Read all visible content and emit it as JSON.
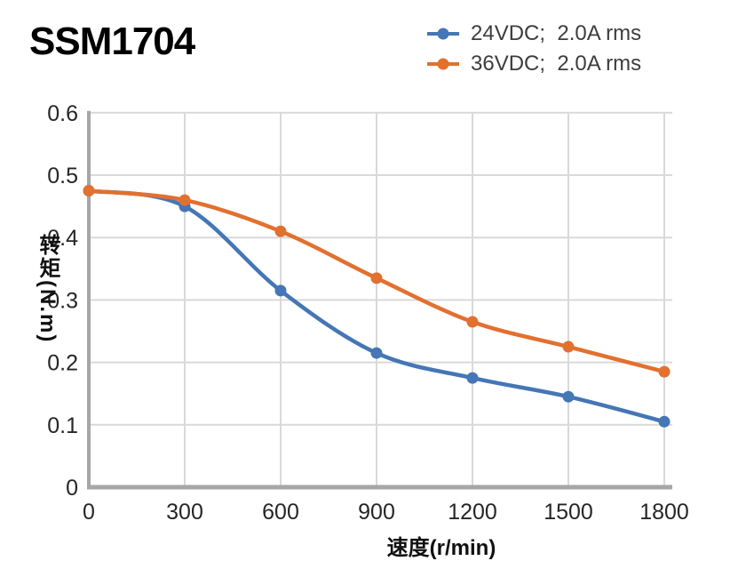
{
  "title": "SSM1704",
  "colors": {
    "series_24vdc": "#4576B5",
    "series_36vdc": "#E2702F",
    "grid": "#D9D9D9",
    "axis": "#A6A6A6",
    "tick_text": "#262626",
    "legend_text": "#3D3D3D",
    "title_text": "#000000"
  },
  "chart_data": {
    "type": "line",
    "x": [
      0,
      300,
      600,
      900,
      1200,
      1500,
      1800
    ],
    "series": [
      {
        "name": "24VDC;  2.0A rms",
        "color": "#4576B5",
        "values": [
          0.475,
          0.45,
          0.315,
          0.215,
          0.175,
          0.145,
          0.105
        ]
      },
      {
        "name": "36VDC;  2.0A rms",
        "color": "#E2702F",
        "values": [
          0.475,
          0.46,
          0.41,
          0.335,
          0.265,
          0.225,
          0.185
        ]
      }
    ],
    "title": "SSM1704",
    "xlabel": "速度(r/min)",
    "ylabel": "转矩(N.m)",
    "xlim": [
      0,
      1825
    ],
    "ylim": [
      0,
      0.6
    ],
    "x_ticks": [
      0,
      300,
      600,
      900,
      1200,
      1500,
      1800
    ],
    "y_ticks": [
      0,
      0.1,
      0.2,
      0.3,
      0.4,
      0.5,
      0.6
    ],
    "grid": true,
    "smooth": true,
    "marker": "circle",
    "legend_position": "top-right"
  }
}
